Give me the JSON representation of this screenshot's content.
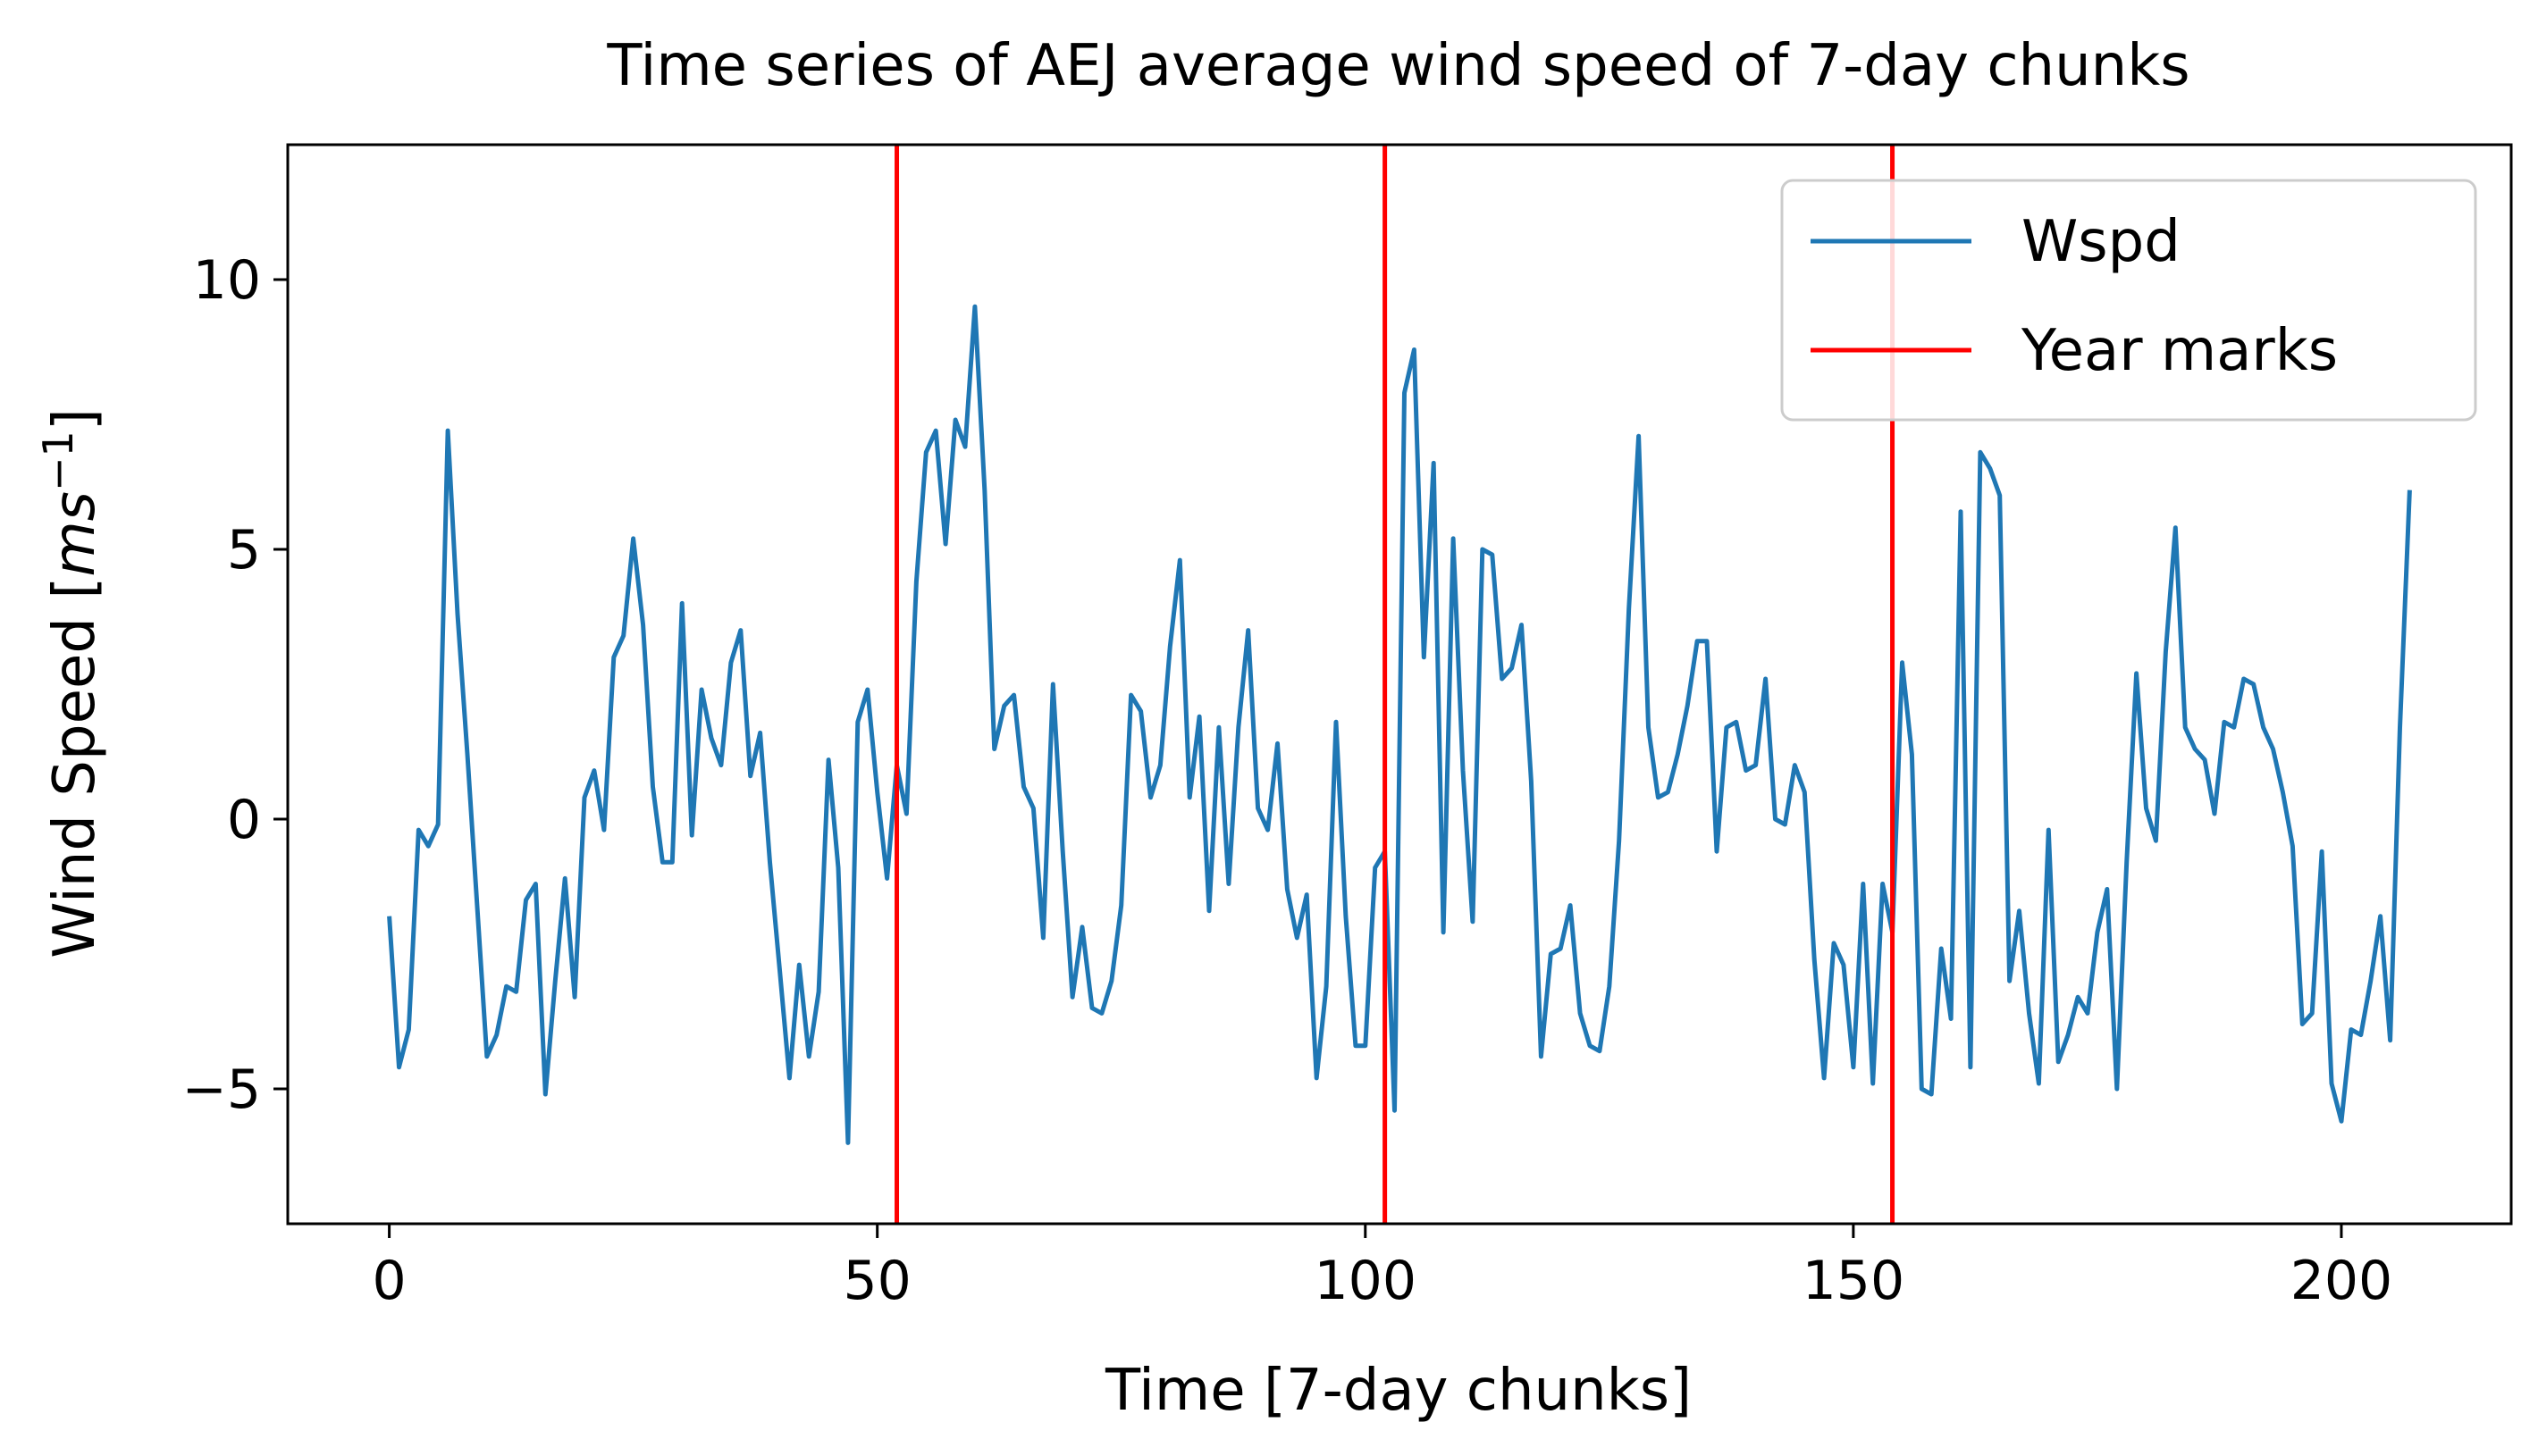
{
  "chart_data": {
    "type": "line",
    "title": "Time series of AEJ average wind speed of 7-day chunks",
    "xlabel": "Time [7-day chunks]",
    "ylabel_text": "Wind Speed [",
    "ylabel_unit": "ms",
    "ylabel_sup": "−1",
    "ylabel_close": "]",
    "xlim": [
      -10.4,
      217.4
    ],
    "ylim": [
      -7.5,
      12.5
    ],
    "xticks": [
      0,
      50,
      100,
      150,
      200
    ],
    "yticks": [
      -5,
      0,
      5,
      10
    ],
    "xtick_labels": [
      "0",
      "50",
      "100",
      "150",
      "200"
    ],
    "ytick_labels": [
      "−5",
      "0",
      "5",
      "10"
    ],
    "grid": false,
    "legend_position": "top-right",
    "series": [
      {
        "name": "Wspd",
        "color": "#1f77b4",
        "y": [
          -1.8,
          -4.6,
          -3.9,
          -0.2,
          -0.5,
          -0.1,
          7.2,
          3.8,
          1.2,
          -1.6,
          -4.4,
          -4.0,
          -3.1,
          -3.2,
          -1.5,
          -1.2,
          -5.1,
          -3.0,
          -1.1,
          -3.3,
          0.4,
          0.9,
          -0.2,
          3.0,
          3.4,
          5.2,
          3.6,
          0.6,
          -0.8,
          -0.8,
          4.0,
          -0.3,
          2.4,
          1.5,
          1.0,
          2.9,
          3.5,
          0.8,
          1.6,
          -0.8,
          -2.8,
          -4.8,
          -2.7,
          -4.4,
          -3.2,
          1.1,
          -0.9,
          -6.0,
          1.8,
          2.4,
          0.5,
          -1.1,
          1.0,
          0.1,
          4.4,
          6.8,
          7.2,
          5.1,
          7.4,
          6.9,
          9.5,
          6.1,
          1.3,
          2.1,
          2.3,
          0.6,
          0.2,
          -2.2,
          2.5,
          -0.6,
          -3.3,
          -2.0,
          -3.5,
          -3.6,
          -3.0,
          -1.6,
          2.3,
          2.0,
          0.4,
          1.0,
          3.2,
          4.8,
          0.4,
          1.9,
          -1.7,
          1.7,
          -1.2,
          1.7,
          3.5,
          0.2,
          -0.2,
          1.4,
          -1.3,
          -2.2,
          -1.4,
          -4.8,
          -3.1,
          1.8,
          -1.8,
          -4.2,
          -4.2,
          -0.9,
          -0.6,
          -5.4,
          7.9,
          8.7,
          3.0,
          6.6,
          -2.1,
          5.2,
          0.9,
          -1.9,
          5.0,
          4.9,
          2.6,
          2.8,
          3.6,
          0.7,
          -4.4,
          -2.5,
          -2.4,
          -1.6,
          -3.6,
          -4.2,
          -4.3,
          -3.1,
          -0.4,
          3.9,
          7.1,
          1.7,
          0.4,
          0.5,
          1.2,
          2.1,
          3.3,
          3.3,
          -0.6,
          1.7,
          1.8,
          0.9,
          1.0,
          2.6,
          0.0,
          -0.1,
          1.0,
          0.5,
          -2.6,
          -4.8,
          -2.3,
          -2.7,
          -4.6,
          -1.2,
          -4.9,
          -1.2,
          -2.1,
          2.9,
          1.2,
          -5.0,
          -5.1,
          -2.4,
          -3.7,
          5.7,
          -4.6,
          6.8,
          6.5,
          6.0,
          -3.0,
          -1.7,
          -3.6,
          -4.9,
          -0.2,
          -4.5,
          -4.0,
          -3.3,
          -3.6,
          -2.1,
          -1.3,
          -5.0,
          -0.8,
          2.7,
          0.2,
          -0.4,
          3.1,
          5.4,
          1.7,
          1.3,
          1.1,
          0.1,
          1.8,
          1.7,
          2.6,
          2.5,
          1.7,
          1.3,
          0.5,
          -0.5,
          -3.8,
          -3.6,
          -0.6,
          -4.9,
          -5.6,
          -3.9,
          -4.0,
          -3.0,
          -1.8,
          -4.1,
          1.7,
          6.1
        ]
      },
      {
        "name": "Year marks",
        "color": "#ff0000",
        "x_positions": [
          52,
          102,
          154
        ]
      }
    ]
  }
}
